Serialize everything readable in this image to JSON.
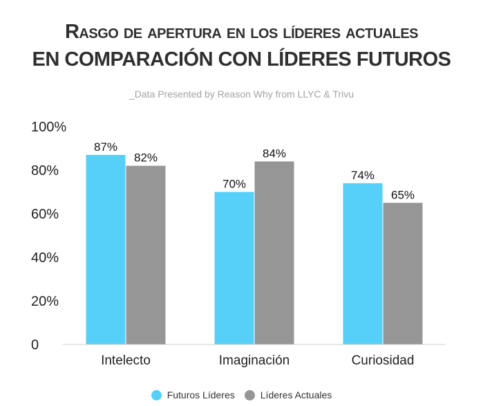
{
  "header": {
    "title_line1": "Rasgo de apertura en los líderes actuales",
    "title_line2": "en comparación con líderes futuros",
    "subtitle": "_Data Presented by Reason Why from LLYC & Trivu"
  },
  "colors": {
    "futuros": "#56cff9",
    "actuales": "#969696"
  },
  "chart_data": {
    "type": "bar",
    "categories": [
      "Intelecto",
      "Imaginación",
      "Curiosidad"
    ],
    "series": [
      {
        "name": "Futuros Líderes",
        "values": [
          87,
          70,
          74
        ],
        "labels": [
          "87%",
          "70%",
          "74%"
        ]
      },
      {
        "name": "Líderes Actuales",
        "values": [
          82,
          84,
          65
        ],
        "labels": [
          "82%",
          "84%",
          "65%"
        ]
      }
    ],
    "yticks": [
      "0",
      "20%",
      "40%",
      "60%",
      "80%",
      "100%"
    ],
    "ylim": [
      0,
      100
    ],
    "legend_position": "bottom-center",
    "grid": false
  }
}
